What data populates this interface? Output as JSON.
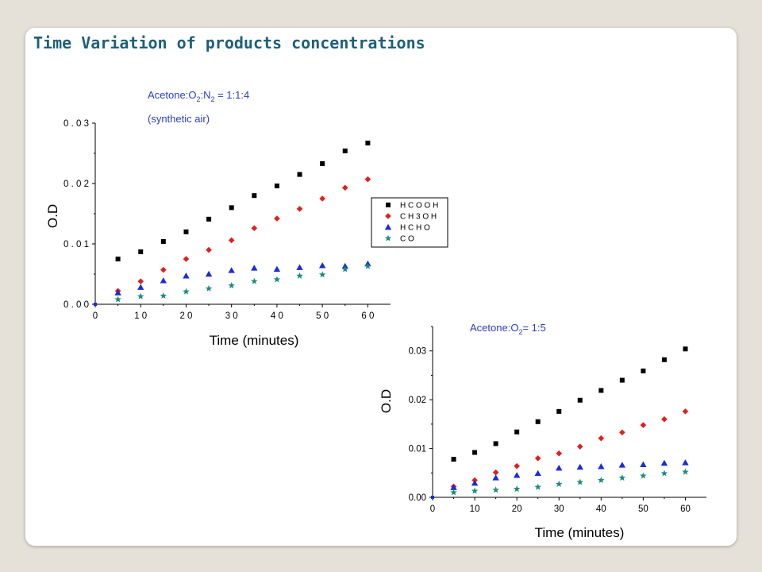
{
  "slide": {
    "title": "Time Variation of products concentrations"
  },
  "colors": {
    "HCOOH": "#000000",
    "CH3OH": "#e01f1f",
    "HCHO": "#1a2bd8",
    "CO": "#1c8c7e"
  },
  "chart_data": [
    {
      "type": "scatter",
      "annotation_line1": {
        "before": "Acetone:O",
        "sub1": "2",
        "middle": ":N",
        "sub2": "2",
        "after": " = 1:1:4"
      },
      "annotation_line2": "(synthetic air)",
      "xlabel": "Time (minutes)",
      "ylabel": "O.D",
      "xlim": [
        0,
        65
      ],
      "ylim": [
        0,
        0.03
      ],
      "xticks": [
        0,
        10,
        20,
        30,
        40,
        50,
        60
      ],
      "xtick_labels": [
        "0",
        "1 0",
        "2 0",
        "3 0",
        "4 0",
        "5 0",
        "6 0"
      ],
      "yticks": [
        0,
        0.01,
        0.02,
        0.03
      ],
      "ytick_labels": [
        "0 . 0 0",
        "0 . 0 1",
        "0 . 0 2",
        "0 . 0 3"
      ],
      "legend": {
        "placement": "right",
        "entries": [
          "H C O O H",
          "C H 3 O H",
          "H C H O",
          "C O"
        ]
      },
      "series": [
        {
          "name": "H C O O H",
          "marker": "square",
          "color": "#000000",
          "x": [
            5,
            10,
            15,
            20,
            25,
            30,
            35,
            40,
            45,
            50,
            55,
            60
          ],
          "y": [
            0.0075,
            0.0087,
            0.0104,
            0.012,
            0.0141,
            0.016,
            0.018,
            0.0196,
            0.0215,
            0.0233,
            0.0254,
            0.0267
          ]
        },
        {
          "name": "C H 3 O H",
          "marker": "diamond",
          "color": "#e01f1f",
          "x": [
            5,
            10,
            15,
            20,
            25,
            30,
            35,
            40,
            45,
            50,
            55,
            60
          ],
          "y": [
            0.0022,
            0.0038,
            0.0057,
            0.0075,
            0.009,
            0.0106,
            0.0126,
            0.0142,
            0.0158,
            0.0175,
            0.0193,
            0.0207
          ]
        },
        {
          "name": "H C H O",
          "marker": "triangle",
          "color": "#1a2bd8",
          "x": [
            5,
            10,
            15,
            20,
            25,
            30,
            35,
            40,
            45,
            50,
            55,
            60
          ],
          "y": [
            0.0019,
            0.0028,
            0.0039,
            0.0047,
            0.005,
            0.0056,
            0.006,
            0.0058,
            0.0061,
            0.0064,
            0.0063,
            0.0067
          ]
        },
        {
          "name": "C O",
          "marker": "star",
          "color": "#1c8c7e",
          "x": [
            5,
            10,
            15,
            20,
            25,
            30,
            35,
            40,
            45,
            50,
            55,
            60
          ],
          "y": [
            0.0008,
            0.0013,
            0.0014,
            0.0021,
            0.0026,
            0.0031,
            0.0038,
            0.0041,
            0.0047,
            0.0049,
            0.0058,
            0.0063
          ]
        }
      ]
    },
    {
      "type": "scatter",
      "annotation_line1": {
        "before": "Acetone:O",
        "sub1": "2",
        "after": "= 1:5"
      },
      "xlabel": "Time (minutes)",
      "ylabel": "O.D",
      "xlim": [
        0,
        65
      ],
      "ylim": [
        0,
        0.035
      ],
      "xticks": [
        0,
        10,
        20,
        30,
        40,
        50,
        60
      ],
      "xtick_labels": [
        "0",
        "10",
        "20",
        "30",
        "40",
        "50",
        "60"
      ],
      "yticks": [
        0,
        0.01,
        0.02,
        0.03
      ],
      "ytick_labels": [
        "0.00",
        "0.01",
        "0.02",
        "0.03"
      ],
      "series": [
        {
          "name": "H C O O H",
          "marker": "square",
          "color": "#000000",
          "x": [
            5,
            10,
            15,
            20,
            25,
            30,
            35,
            40,
            45,
            50,
            55,
            60
          ],
          "y": [
            0.0078,
            0.0092,
            0.011,
            0.0134,
            0.0155,
            0.0176,
            0.0199,
            0.0219,
            0.024,
            0.0259,
            0.0282,
            0.0304
          ]
        },
        {
          "name": "C H 3 O H",
          "marker": "diamond",
          "color": "#e01f1f",
          "x": [
            5,
            10,
            15,
            20,
            25,
            30,
            35,
            40,
            45,
            50,
            55,
            60
          ],
          "y": [
            0.0022,
            0.0035,
            0.0051,
            0.0064,
            0.008,
            0.009,
            0.0104,
            0.0121,
            0.0133,
            0.0148,
            0.016,
            0.0176
          ]
        },
        {
          "name": "H C H O",
          "marker": "triangle",
          "color": "#1a2bd8",
          "x": [
            5,
            10,
            15,
            20,
            25,
            30,
            35,
            40,
            45,
            50,
            55,
            60
          ],
          "y": [
            0.002,
            0.0029,
            0.004,
            0.0045,
            0.0049,
            0.006,
            0.0062,
            0.0063,
            0.0066,
            0.0067,
            0.007,
            0.0071
          ]
        },
        {
          "name": "C O",
          "marker": "star",
          "color": "#1c8c7e",
          "x": [
            5,
            10,
            15,
            20,
            25,
            30,
            35,
            40,
            45,
            50,
            55,
            60
          ],
          "y": [
            0.001,
            0.0013,
            0.0015,
            0.0017,
            0.0021,
            0.0027,
            0.0031,
            0.0035,
            0.004,
            0.0044,
            0.0049,
            0.0052
          ]
        }
      ]
    }
  ]
}
